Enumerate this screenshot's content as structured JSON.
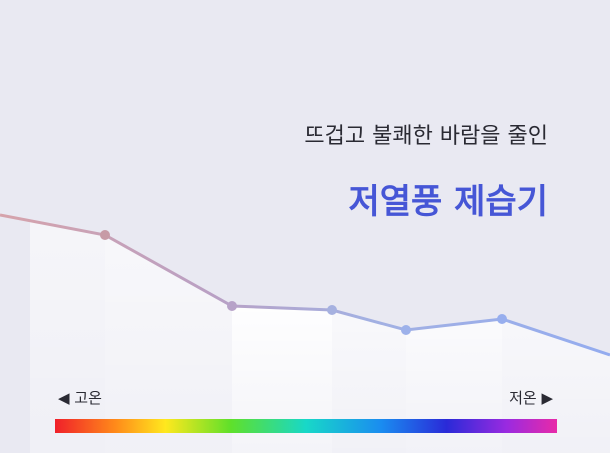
{
  "header": {
    "subtitle": "뜨겁고 불쾌한 바람을 줄인",
    "title": "저열풍 제습기"
  },
  "scale": {
    "left_label": "◀ 고온",
    "right_label": "저온 ▶"
  }
}
